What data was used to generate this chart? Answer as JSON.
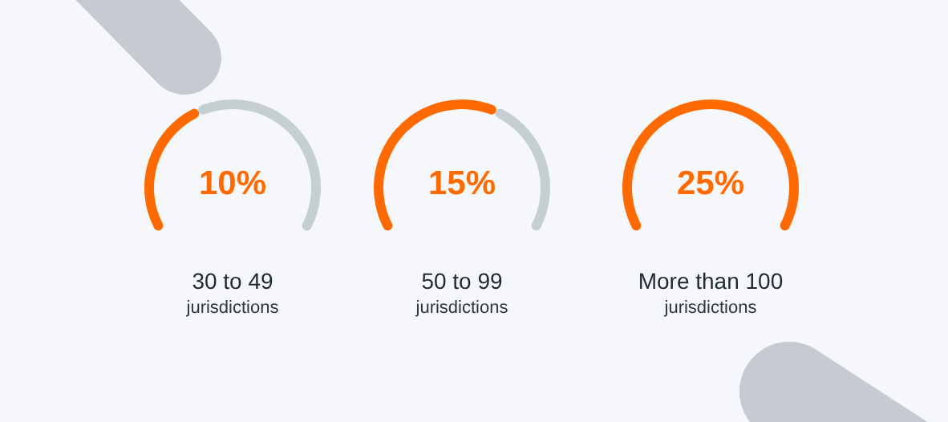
{
  "chart_data": {
    "type": "other",
    "categories": [
      "30 to 49",
      "50 to 99",
      "More than 100"
    ],
    "series": [
      {
        "color": "#ff6a00",
        "values": [
          10,
          15,
          25
        ],
        "value_labels": [
          "10%",
          "15%",
          "25%"
        ]
      }
    ],
    "annotations": [
      {
        "text": "jurisdictions",
        "x": "30 to 49"
      },
      {
        "text": "jurisdictions",
        "x": "50 to 99"
      },
      {
        "text": "jurisdictions",
        "x": "More than 100"
      }
    ]
  }
}
